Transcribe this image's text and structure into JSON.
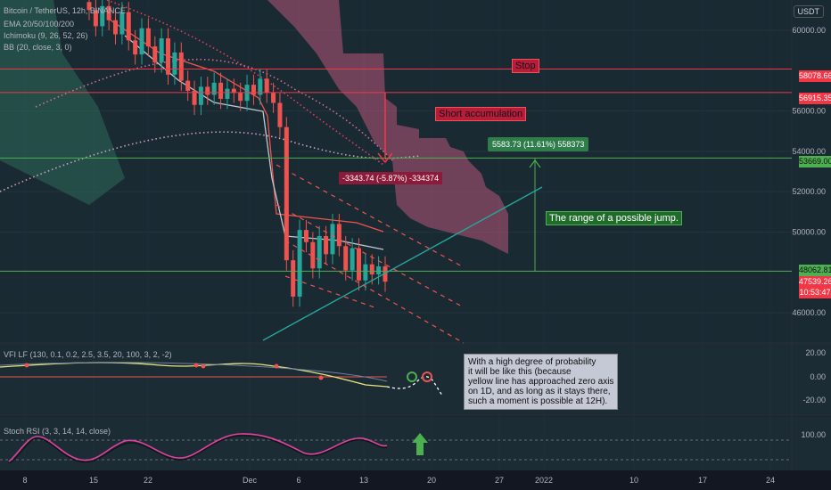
{
  "header": {
    "symbol": "Bitcoin / TetherUS, 12h, BINANCE",
    "currency_button": "USDT"
  },
  "indicators": {
    "ema": "EMA 20/50/100/200",
    "ichimoku": "Ichimoku (9, 26, 52, 26)",
    "bb": "BB (20, close, 3, 0)",
    "vfi": "VFI LF (130, 0.1, 0.2, 2.5, 3.5, 20, 100, 3, 2, -2)",
    "stoch": "Stoch RSI (3, 3, 14, 14, close)"
  },
  "price_axis": {
    "ticks": [
      "60000.00",
      "56000.00",
      "54000.00",
      "52000.00",
      "50000.00",
      "46000.00"
    ],
    "tags": {
      "stop": "58078.66",
      "short": "56915.35",
      "target": "53669.00",
      "support": "48062.81",
      "last": "47539.26",
      "countdown": "10:53:47"
    }
  },
  "vfi_axis": {
    "ticks": [
      "20.00",
      "0.00",
      "-20.00"
    ]
  },
  "stoch_axis": {
    "ticks": [
      "100.00"
    ]
  },
  "time_axis": {
    "ticks": [
      "8",
      "15",
      "22",
      "Dec",
      "6",
      "13",
      "20",
      "27",
      "2022",
      "10",
      "17",
      "24"
    ]
  },
  "annotations": {
    "stop": "Stop",
    "short": "Short accumulation",
    "range": "The range of a possible jump.",
    "drop_measure": "-3343.74 (-5.87%) -334374",
    "rise_measure": "5583.73 (11.61%) 558373",
    "note": "With a high degree of probability\nit will be like this (because\nyellow line has approached zero axis\non 1D, and as long as it stays there,\nsuch a moment is possible at 12H)."
  },
  "colors": {
    "background": "#131722",
    "up": "#26a69a",
    "down": "#ef5350",
    "cloud": "#b8557a",
    "vfi": "#e6e67a",
    "stoch": "#e040a0"
  },
  "chart_data": {
    "type": "candlestick",
    "y_range": [
      44500,
      61500
    ],
    "levels": {
      "stop": 58078.66,
      "short": 56915.35,
      "target": 53669.0,
      "support": 48062.81,
      "last": 47539.26
    },
    "closes": [
      61000,
      60200,
      61200,
      60500,
      59800,
      60900,
      59500,
      58800,
      60100,
      59200,
      58400,
      59600,
      57800,
      58900,
      57500,
      57000,
      56300,
      57200,
      56800,
      57400,
      56600,
      57100,
      56900,
      56500,
      57300,
      56800,
      57600,
      56900,
      56400,
      55200,
      48600,
      46800,
      50100,
      49500,
      48200,
      49800,
      48900,
      50400,
      49300,
      48100,
      49200,
      47600,
      48400,
      47900,
      48300,
      47539
    ]
  }
}
